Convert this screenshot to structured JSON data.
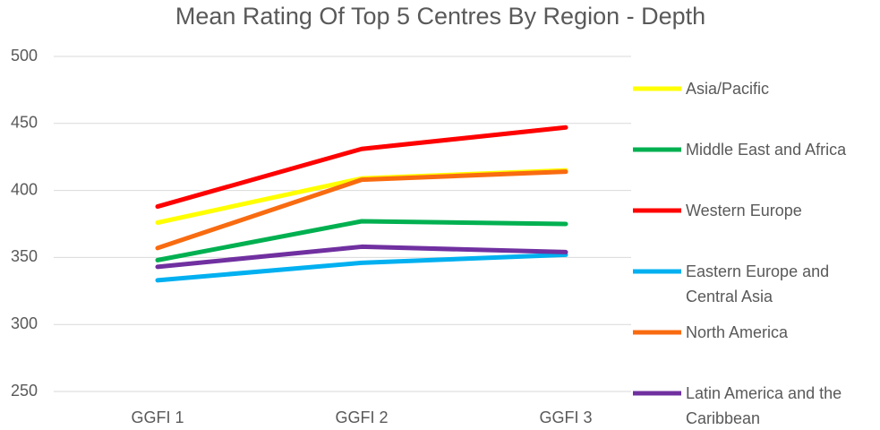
{
  "chart_data": {
    "type": "line",
    "title": "Mean Rating Of Top 5 Centres By Region - Depth",
    "categories": [
      "GGFI 1",
      "GGFI 2",
      "GGFI 3"
    ],
    "series": [
      {
        "name": "Asia/Pacific",
        "color": "#ffff00",
        "values": [
          376,
          409,
          415
        ]
      },
      {
        "name": "Middle East and Africa",
        "color": "#00b050",
        "values": [
          348,
          377,
          375
        ]
      },
      {
        "name": "Western Europe",
        "color": "#ff0000",
        "values": [
          388,
          431,
          447
        ]
      },
      {
        "name": "Eastern Europe and Central Asia",
        "color": "#00b0f0",
        "values": [
          333,
          346,
          352
        ]
      },
      {
        "name": "North America",
        "color": "#f96b10",
        "values": [
          357,
          408,
          414
        ]
      },
      {
        "name": "Latin America and the Caribbean",
        "color": "#7030a0",
        "values": [
          343,
          358,
          354
        ]
      }
    ],
    "ylim": [
      250,
      500
    ],
    "yticks": [
      250,
      300,
      350,
      400,
      450,
      500
    ],
    "grid": true,
    "legend": "right"
  }
}
